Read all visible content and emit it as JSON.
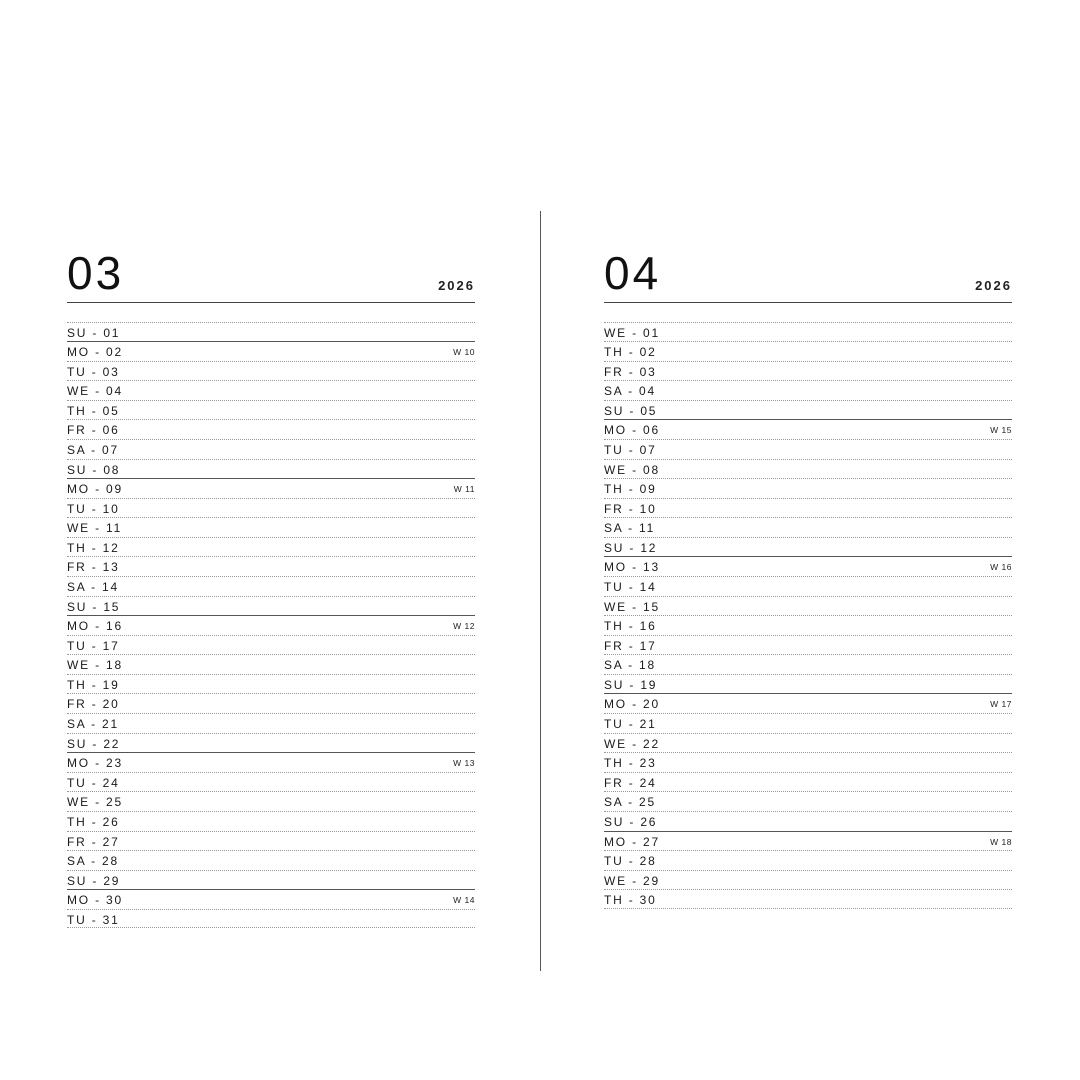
{
  "months": [
    {
      "id": "left",
      "month": "03",
      "year": "2026",
      "days": [
        {
          "label": "SU - 01"
        },
        {
          "label": "MO - 02",
          "week": "W 10"
        },
        {
          "label": "TU - 03"
        },
        {
          "label": "WE - 04"
        },
        {
          "label": "TH - 05"
        },
        {
          "label": "FR - 06"
        },
        {
          "label": "SA - 07"
        },
        {
          "label": "SU - 08"
        },
        {
          "label": "MO - 09",
          "week": "W 11"
        },
        {
          "label": "TU - 10"
        },
        {
          "label": "WE - 11"
        },
        {
          "label": "TH - 12"
        },
        {
          "label": "FR - 13"
        },
        {
          "label": "SA - 14"
        },
        {
          "label": "SU - 15"
        },
        {
          "label": "MO - 16",
          "week": "W 12"
        },
        {
          "label": "TU - 17"
        },
        {
          "label": "WE - 18"
        },
        {
          "label": "TH - 19"
        },
        {
          "label": "FR - 20"
        },
        {
          "label": "SA - 21"
        },
        {
          "label": "SU - 22"
        },
        {
          "label": "MO - 23",
          "week": "W 13"
        },
        {
          "label": "TU - 24"
        },
        {
          "label": "WE - 25"
        },
        {
          "label": "TH - 26"
        },
        {
          "label": "FR - 27"
        },
        {
          "label": "SA - 28"
        },
        {
          "label": "SU - 29"
        },
        {
          "label": "MO - 30",
          "week": "W 14"
        },
        {
          "label": "TU - 31"
        }
      ]
    },
    {
      "id": "right",
      "month": "04",
      "year": "2026",
      "days": [
        {
          "label": "WE - 01"
        },
        {
          "label": "TH - 02"
        },
        {
          "label": "FR - 03"
        },
        {
          "label": "SA - 04"
        },
        {
          "label": "SU - 05"
        },
        {
          "label": "MO - 06",
          "week": "W 15"
        },
        {
          "label": "TU - 07"
        },
        {
          "label": "WE - 08"
        },
        {
          "label": "TH - 09"
        },
        {
          "label": "FR - 10"
        },
        {
          "label": "SA - 11"
        },
        {
          "label": "SU - 12"
        },
        {
          "label": "MO - 13",
          "week": "W 16"
        },
        {
          "label": "TU - 14"
        },
        {
          "label": "WE - 15"
        },
        {
          "label": "TH - 16"
        },
        {
          "label": "FR - 17"
        },
        {
          "label": "SA - 18"
        },
        {
          "label": "SU - 19"
        },
        {
          "label": "MO - 20",
          "week": "W 17"
        },
        {
          "label": "TU - 21"
        },
        {
          "label": "WE - 22"
        },
        {
          "label": "TH - 23"
        },
        {
          "label": "FR - 24"
        },
        {
          "label": "SA - 25"
        },
        {
          "label": "SU - 26"
        },
        {
          "label": "MO - 27",
          "week": "W 18"
        },
        {
          "label": "TU - 28"
        },
        {
          "label": "WE - 29"
        },
        {
          "label": "TH - 30"
        }
      ]
    }
  ]
}
